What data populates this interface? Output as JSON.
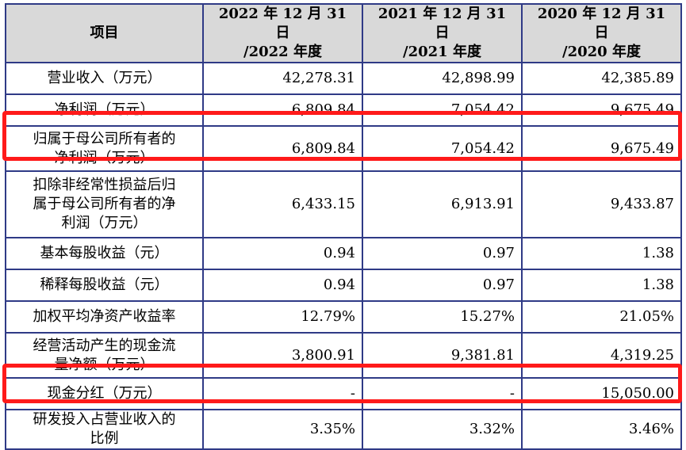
{
  "table": {
    "headers": [
      "项目",
      "2022 年 12 月 31 日\n/2022 年度",
      "2021 年 12 月 31 日\n/2021 年度",
      "2020 年 12 月 31 日\n/2020 年度"
    ],
    "rows": [
      {
        "label": "营业收入（万元）",
        "values": [
          "42,278.31",
          "42,898.99",
          "42,385.89"
        ]
      },
      {
        "label": "净利润（万元）",
        "values": [
          "6,809.84",
          "7,054.42",
          "9,675.49"
        ]
      },
      {
        "label": "归属于母公司所有者的\n净利润（万元）",
        "values": [
          "6,809.84",
          "7,054.42",
          "9,675.49"
        ]
      },
      {
        "label": "扣除非经常性损益后归\n属于母公司所有者的净\n利润（万元）",
        "values": [
          "6,433.15",
          "6,913.91",
          "9,433.87"
        ]
      },
      {
        "label": "基本每股收益（元）",
        "values": [
          "0.94",
          "0.97",
          "1.38"
        ]
      },
      {
        "label": "稀释每股收益（元）",
        "values": [
          "0.94",
          "0.97",
          "1.38"
        ]
      },
      {
        "label": "加权平均净资产收益率",
        "values": [
          "12.79%",
          "15.27%",
          "21.05%"
        ]
      },
      {
        "label": "经营活动产生的现金流\n量净额（万元）",
        "values": [
          "3,800.91",
          "9,381.81",
          "4,319.25"
        ]
      },
      {
        "label": "现金分红（万元）",
        "values": [
          "-",
          "-",
          "15,050.00"
        ]
      },
      {
        "label": "研发投入占营业收入的\n比例",
        "values": [
          "3.35%",
          "3.32%",
          "3.46%"
        ]
      }
    ]
  },
  "highlight_color": "#ff1a1a",
  "border_color": "#2f3a86",
  "header_bg": "#d9d9d9"
}
